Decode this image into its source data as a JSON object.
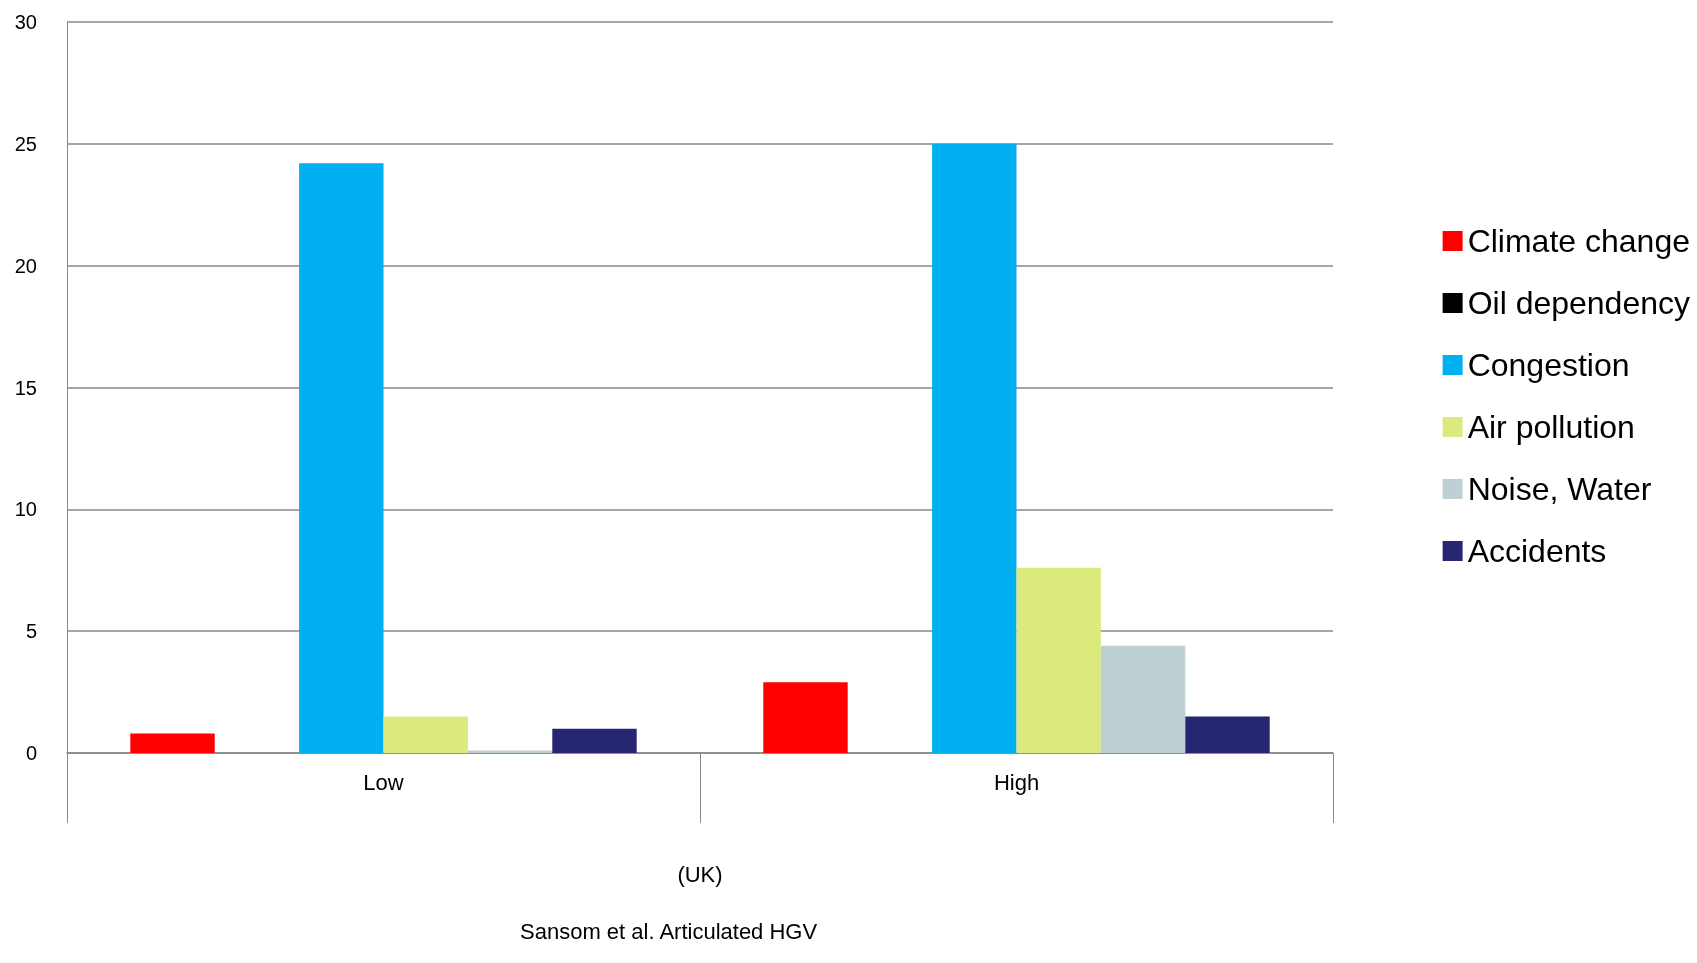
{
  "chart_data": {
    "type": "bar",
    "categories": [
      "Low",
      "High"
    ],
    "series": [
      {
        "name": "Climate change",
        "color": "#ff0000",
        "values": [
          0.8,
          2.9
        ]
      },
      {
        "name": "Oil dependency",
        "color": "#000000",
        "values": [
          0,
          0
        ]
      },
      {
        "name": "Congestion",
        "color": "#00b0f0",
        "values": [
          24.2,
          25.0
        ]
      },
      {
        "name": "Air pollution",
        "color": "#dce97c",
        "values": [
          1.5,
          7.6
        ]
      },
      {
        "name": "Noise, Water",
        "color": "#bfd0d4",
        "values": [
          0.1,
          4.4
        ]
      },
      {
        "name": "Accidents",
        "color": "#262673",
        "values": [
          1.0,
          1.5
        ]
      }
    ],
    "xlabel": "(UK)",
    "annotations": [
      "Sansom et al. Articulated HGV"
    ],
    "ylim": [
      0,
      30
    ],
    "yticks": [
      0,
      5,
      10,
      15,
      20,
      25,
      30
    ],
    "grid": "y",
    "legend": "right"
  }
}
